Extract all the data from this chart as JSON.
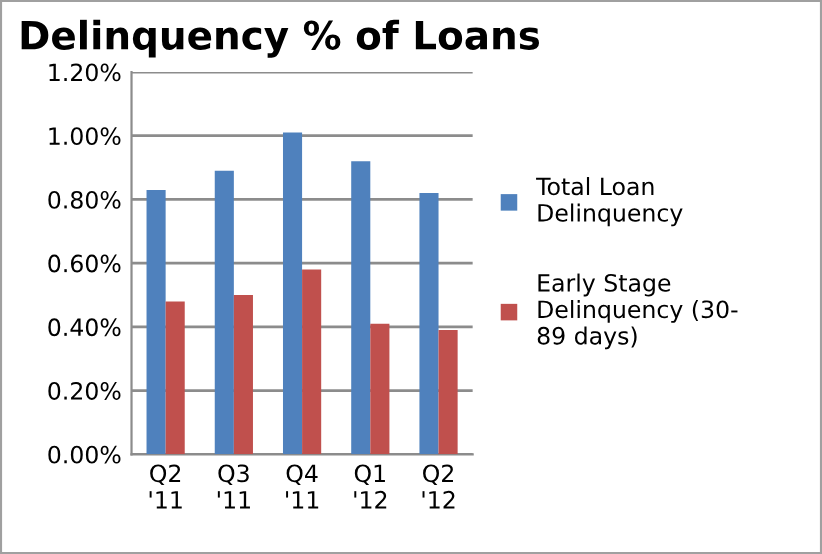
{
  "chart_data": {
    "type": "bar",
    "title": "Delinquency % of Loans",
    "categories": [
      "Q2\n'11",
      "Q3\n'11",
      "Q4\n'11",
      "Q1\n'12",
      "Q2\n'12"
    ],
    "series": [
      {
        "name": "Total Loan\nDelinquency",
        "color": "#4f81bd",
        "values": [
          0.83,
          0.89,
          1.01,
          0.92,
          0.82
        ]
      },
      {
        "name": "Early Stage\nDelinquency (30-\n89 days)",
        "color": "#c0504d",
        "values": [
          0.48,
          0.5,
          0.58,
          0.41,
          0.39
        ]
      }
    ],
    "ylim": [
      0,
      1.2
    ],
    "yticks": [
      {
        "value": 0,
        "label": "0.00%"
      },
      {
        "value": 0.2,
        "label": "0.20%"
      },
      {
        "value": 0.4,
        "label": "0.40%"
      },
      {
        "value": 0.6,
        "label": "0.60%"
      },
      {
        "value": 0.8,
        "label": "0.80%"
      },
      {
        "value": 1.0,
        "label": "1.00%"
      },
      {
        "value": 1.2,
        "label": "1.20%"
      }
    ],
    "grid": "y",
    "legend": "right"
  }
}
